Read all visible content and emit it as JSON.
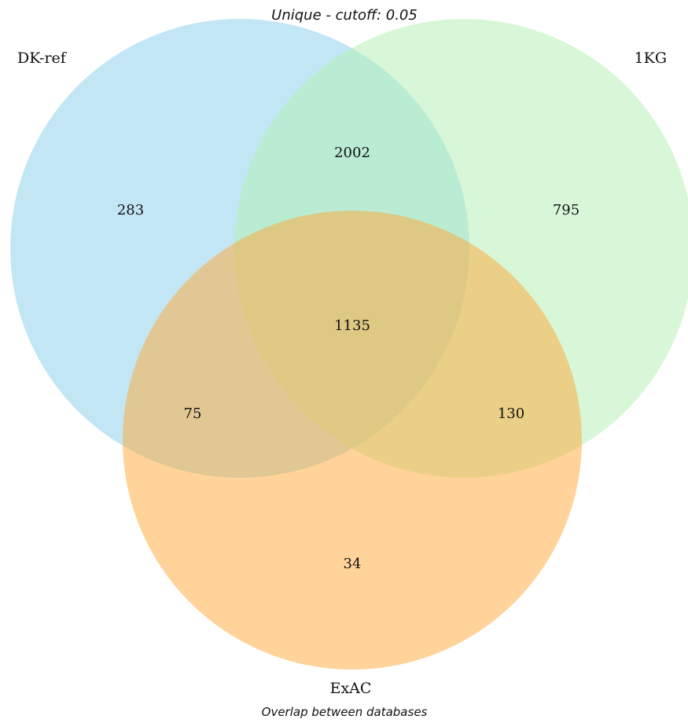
{
  "chart_data": {
    "type": "venn",
    "title": "Unique - cutoff: 0.05",
    "caption": "Overlap between databases",
    "sets": [
      {
        "id": "A",
        "name": "DK-ref",
        "color": "#87CEEB",
        "opacity": 0.5
      },
      {
        "id": "B",
        "name": "1KG",
        "color": "#B2F0B2",
        "opacity": 0.5
      },
      {
        "id": "C",
        "name": "ExAC",
        "color": "#FFA733",
        "opacity": 0.5
      }
    ],
    "regions": [
      {
        "sets": [
          "A"
        ],
        "value": 283
      },
      {
        "sets": [
          "B"
        ],
        "value": 795
      },
      {
        "sets": [
          "C"
        ],
        "value": 34
      },
      {
        "sets": [
          "A",
          "B"
        ],
        "value": 2002
      },
      {
        "sets": [
          "A",
          "C"
        ],
        "value": 75
      },
      {
        "sets": [
          "B",
          "C"
        ],
        "value": 130
      },
      {
        "sets": [
          "A",
          "B",
          "C"
        ],
        "value": 1135
      }
    ]
  }
}
